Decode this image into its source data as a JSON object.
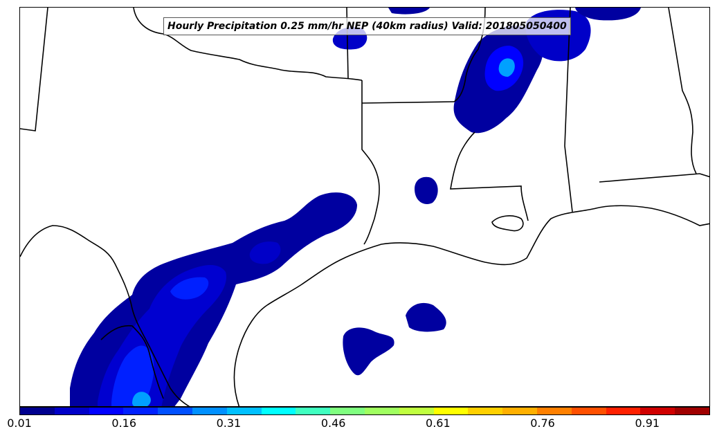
{
  "title": "Hourly Precipitation 0.25 mm/hr NEP (40km radius) Valid: 201805050400",
  "colorbar": {
    "min": 0.01,
    "max": 1.0,
    "tick_labels": [
      "0.01",
      "0.16",
      "0.31",
      "0.46",
      "0.61",
      "0.76",
      "0.91"
    ],
    "colors": [
      "#00008f",
      "#0000c8",
      "#0000ff",
      "#0020ff",
      "#0050ff",
      "#0090ff",
      "#00c0ff",
      "#00ffff",
      "#40ffc0",
      "#80ff80",
      "#a0ff60",
      "#c0ff40",
      "#ffff00",
      "#ffd000",
      "#ffb000",
      "#ff8000",
      "#ff5000",
      "#ff2000",
      "#d00000",
      "#a00000"
    ]
  }
}
